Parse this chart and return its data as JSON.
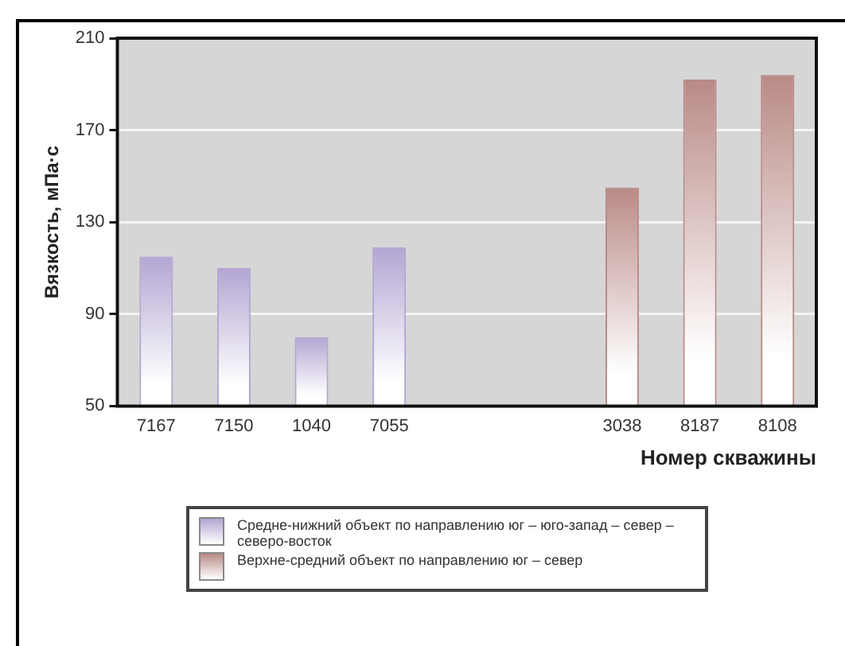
{
  "chart_data": {
    "type": "bar",
    "xlabel": "Номер скважины",
    "ylabel": "Вязкость, мПа·с",
    "categories": [
      "7167",
      "7150",
      "1040",
      "7055",
      null,
      null,
      "3038",
      "8187",
      "8108"
    ],
    "series": [
      {
        "name": "Средне-нижний объект по направлению юг – юго-запад – север – северо-восток",
        "color": "#b3a5d3",
        "values": [
          115,
          110,
          80,
          119,
          null,
          null,
          null,
          null,
          null
        ]
      },
      {
        "name": "Верхне-средний объект по направлению юг – север",
        "color": "#b98a86",
        "values": [
          null,
          null,
          null,
          null,
          null,
          null,
          145,
          192,
          194
        ]
      }
    ],
    "ylim": [
      50,
      210
    ],
    "yticks": [
      50,
      90,
      130,
      170,
      210
    ],
    "grid": "y",
    "legend": "bottom"
  }
}
